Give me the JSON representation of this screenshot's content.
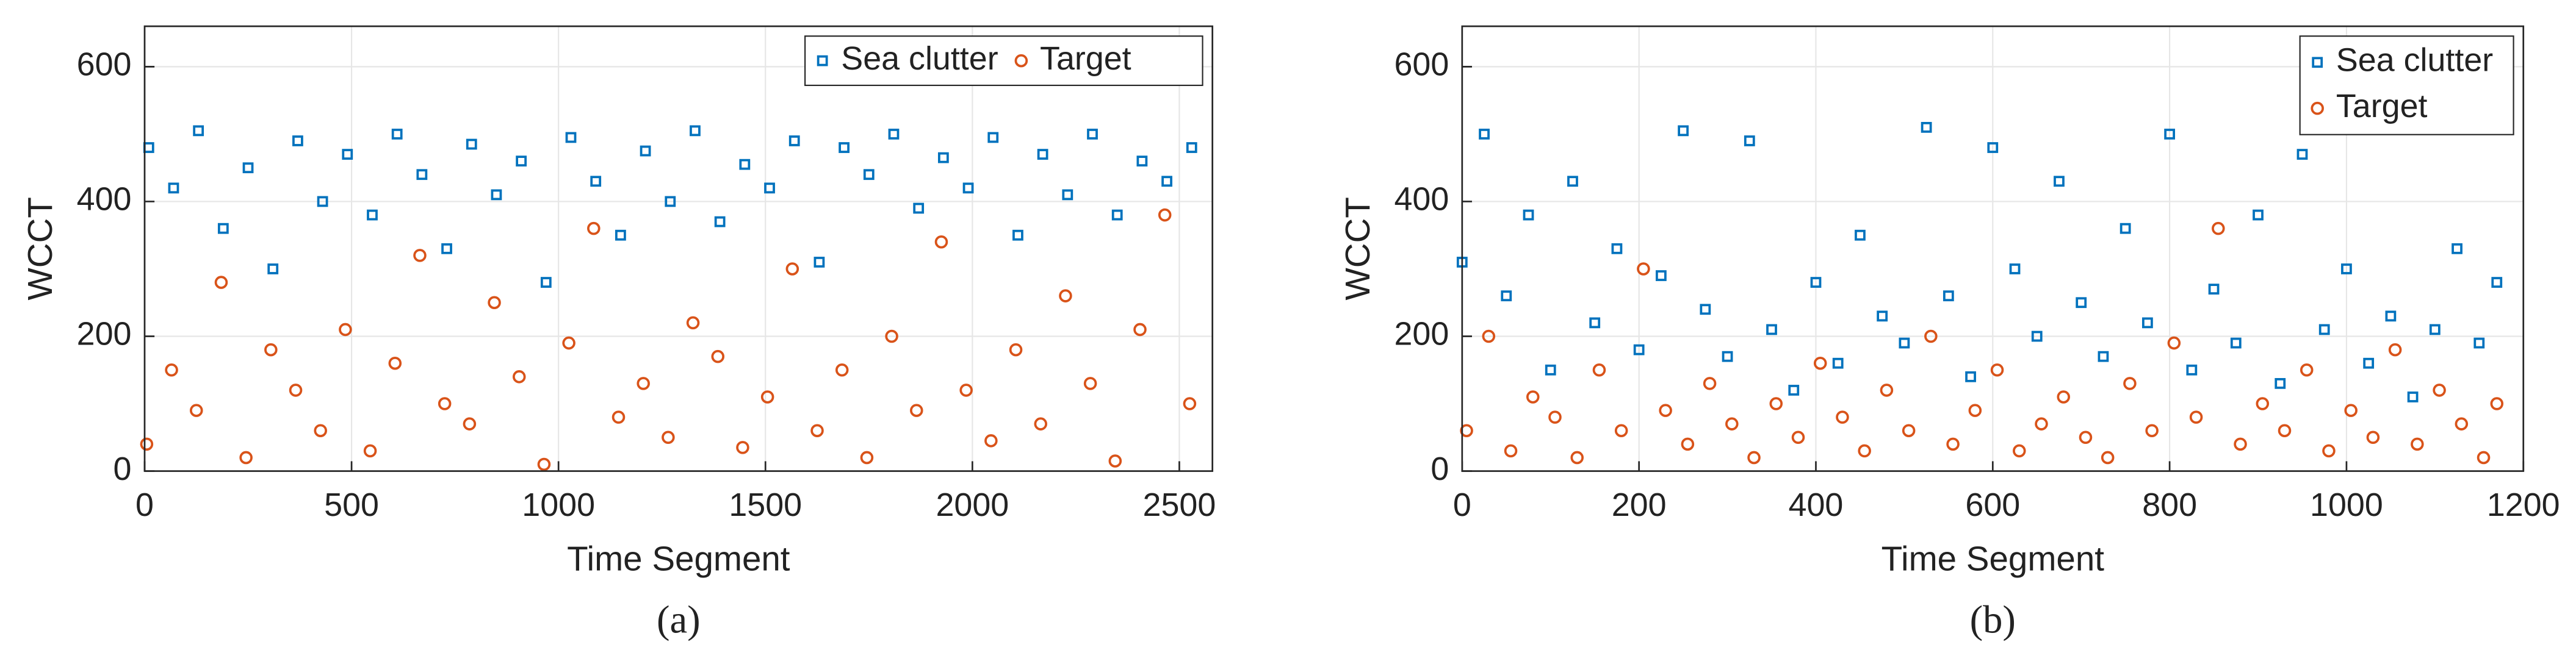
{
  "chart_data": [
    {
      "type": "scatter",
      "caption": "(a)",
      "x_label": "Time Segment",
      "y_label": "WCCT",
      "xlim": [
        0,
        2580
      ],
      "ylim": [
        0,
        660
      ],
      "xticks": [
        0,
        500,
        1000,
        1500,
        2000,
        2500
      ],
      "yticks": [
        0,
        200,
        400,
        600
      ],
      "grid": true,
      "legend": "upper right",
      "legend_layout": "horizontal",
      "series": [
        {
          "name": "Sea clutter",
          "color": "#0072BD",
          "marker": "square",
          "x": [
            10,
            70,
            130,
            190,
            250,
            310,
            370,
            430,
            490,
            550,
            610,
            670,
            730,
            790,
            850,
            910,
            970,
            1030,
            1090,
            1150,
            1210,
            1270,
            1330,
            1390,
            1450,
            1510,
            1570,
            1630,
            1690,
            1750,
            1810,
            1870,
            1930,
            1990,
            2050,
            2110,
            2170,
            2230,
            2290,
            2350,
            2410,
            2470,
            2530
          ],
          "values": [
            480,
            420,
            505,
            360,
            450,
            300,
            490,
            400,
            470,
            380,
            500,
            440,
            330,
            485,
            410,
            460,
            280,
            495,
            430,
            350,
            475,
            400,
            505,
            370,
            455,
            420,
            490,
            310,
            480,
            440,
            500,
            390,
            465,
            420,
            495,
            350,
            470,
            410,
            500,
            380,
            460,
            430,
            480
          ]
        },
        {
          "name": "Target",
          "color": "#D95319",
          "marker": "circle",
          "x": [
            5,
            65,
            125,
            185,
            245,
            305,
            365,
            425,
            485,
            545,
            605,
            665,
            725,
            785,
            845,
            905,
            965,
            1025,
            1085,
            1145,
            1205,
            1265,
            1325,
            1385,
            1445,
            1505,
            1565,
            1625,
            1685,
            1745,
            1805,
            1865,
            1925,
            1985,
            2045,
            2105,
            2165,
            2225,
            2285,
            2345,
            2405,
            2465,
            2525
          ],
          "values": [
            40,
            150,
            90,
            280,
            20,
            180,
            120,
            60,
            210,
            30,
            160,
            320,
            100,
            70,
            250,
            140,
            10,
            190,
            360,
            80,
            130,
            50,
            220,
            170,
            35,
            110,
            300,
            60,
            150,
            20,
            200,
            90,
            340,
            120,
            45,
            180,
            70,
            260,
            130,
            15,
            210,
            380,
            100
          ]
        }
      ]
    },
    {
      "type": "scatter",
      "caption": "(b)",
      "x_label": "Time Segment",
      "y_label": "WCCT",
      "xlim": [
        0,
        1200
      ],
      "ylim": [
        0,
        660
      ],
      "xticks": [
        0,
        200,
        400,
        600,
        800,
        1000,
        1200
      ],
      "yticks": [
        0,
        200,
        400,
        600
      ],
      "grid": true,
      "legend": "upper right",
      "legend_layout": "vertical",
      "series": [
        {
          "name": "Sea clutter",
          "color": "#0072BD",
          "marker": "square",
          "x": [
            0,
            25,
            50,
            75,
            100,
            125,
            150,
            175,
            200,
            225,
            250,
            275,
            300,
            325,
            350,
            375,
            400,
            425,
            450,
            475,
            500,
            525,
            550,
            575,
            600,
            625,
            650,
            675,
            700,
            725,
            750,
            775,
            800,
            825,
            850,
            875,
            900,
            925,
            950,
            975,
            1000,
            1025,
            1050,
            1075,
            1100,
            1125,
            1150,
            1170
          ],
          "values": [
            310,
            500,
            260,
            380,
            150,
            430,
            220,
            330,
            180,
            290,
            505,
            240,
            170,
            490,
            210,
            120,
            280,
            160,
            350,
            230,
            190,
            510,
            260,
            140,
            480,
            300,
            200,
            430,
            250,
            170,
            360,
            220,
            500,
            150,
            270,
            190,
            380,
            130,
            470,
            210,
            300,
            160,
            230,
            110,
            210,
            330,
            190,
            280
          ]
        },
        {
          "name": "Target",
          "color": "#D95319",
          "marker": "circle",
          "x": [
            5,
            30,
            55,
            80,
            105,
            130,
            155,
            180,
            205,
            230,
            255,
            280,
            305,
            330,
            355,
            380,
            405,
            430,
            455,
            480,
            505,
            530,
            555,
            580,
            605,
            630,
            655,
            680,
            705,
            730,
            755,
            780,
            805,
            830,
            855,
            880,
            905,
            930,
            955,
            980,
            1005,
            1030,
            1055,
            1080,
            1105,
            1130,
            1155,
            1170
          ],
          "values": [
            60,
            200,
            30,
            110,
            80,
            20,
            150,
            60,
            300,
            90,
            40,
            130,
            70,
            20,
            100,
            50,
            160,
            80,
            30,
            120,
            60,
            200,
            40,
            90,
            150,
            30,
            70,
            110,
            50,
            20,
            130,
            60,
            190,
            80,
            360,
            40,
            100,
            60,
            150,
            30,
            90,
            50,
            180,
            40,
            120,
            70,
            20,
            100
          ]
        }
      ]
    }
  ]
}
